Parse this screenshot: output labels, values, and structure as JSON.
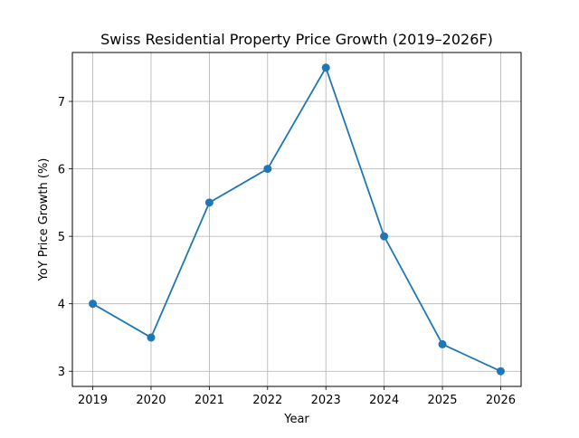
{
  "chart_data": {
    "type": "line",
    "title": "Swiss Residential Property Price Growth (2019–2026F)",
    "xlabel": "Year",
    "ylabel": "YoY Price Growth (%)",
    "x": [
      2019,
      2020,
      2021,
      2022,
      2023,
      2024,
      2025,
      2026
    ],
    "series": [
      {
        "values": [
          4.0,
          3.5,
          5.5,
          6.0,
          7.5,
          5.0,
          3.4,
          3.0
        ],
        "color": "#1f77b4",
        "marker": "circle"
      }
    ],
    "xticks": [
      "2019",
      "2020",
      "2021",
      "2022",
      "2023",
      "2024",
      "2025",
      "2026"
    ],
    "yticks": [
      "3",
      "4",
      "5",
      "6",
      "7"
    ],
    "xlim": [
      2018.65,
      2026.35
    ],
    "ylim": [
      2.775,
      7.725
    ],
    "grid": true
  }
}
